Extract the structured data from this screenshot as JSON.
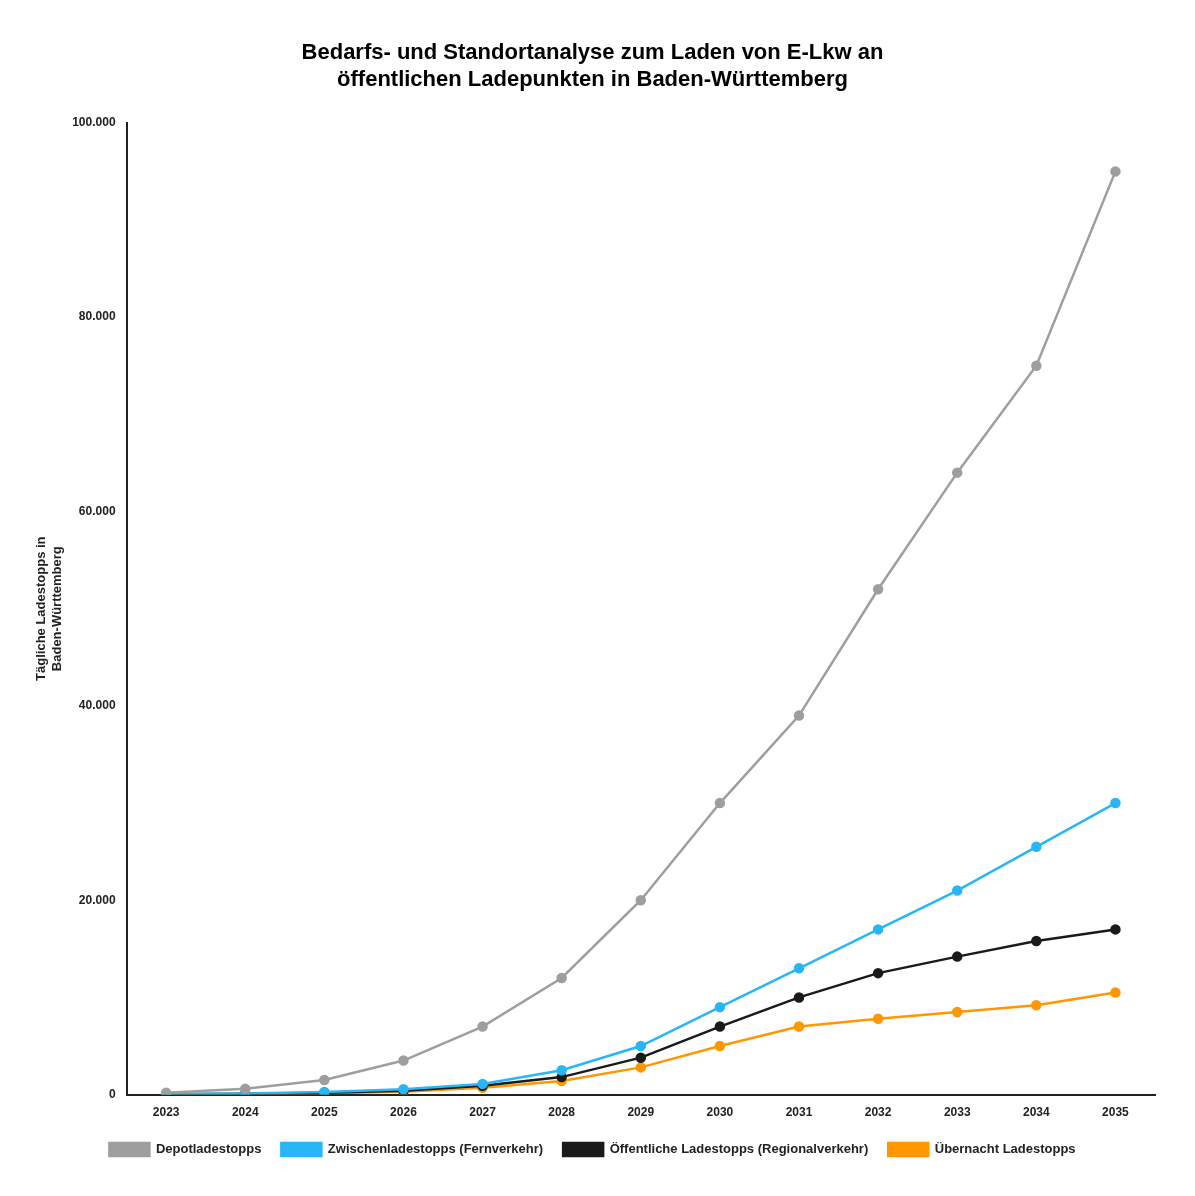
{
  "chart_data": {
    "type": "line",
    "title": [
      "Bedarfs- und Standortanalyse zum Laden von E-Lkw an",
      "öffentlichen Ladepunkten in Baden-Württemberg"
    ],
    "ylabel": [
      "Tägliche Ladestopps in",
      "Baden-Württemberg"
    ],
    "x": [
      2023,
      2024,
      2025,
      2026,
      2027,
      2028,
      2029,
      2030,
      2031,
      2032,
      2033,
      2034,
      2035
    ],
    "series": [
      {
        "name": "Depotladestopps",
        "color": "#9E9E9E",
        "values": [
          200,
          600,
          1500,
          3500,
          7000,
          12000,
          20000,
          30000,
          39000,
          52000,
          64000,
          75000,
          95000
        ]
      },
      {
        "name": "Zwischenladestopps (Fernverkehr)",
        "color": "#29B6F6",
        "values": [
          50,
          120,
          280,
          550,
          1100,
          2500,
          5000,
          9000,
          13000,
          17000,
          21000,
          25500,
          30000
        ]
      },
      {
        "name": "Öffentliche Ladestopps (Regionalverkehr)",
        "color": "#1A1A1A",
        "values": [
          30,
          80,
          200,
          400,
          900,
          1800,
          3800,
          7000,
          10000,
          12500,
          14200,
          15800,
          17000
        ]
      },
      {
        "name": "Übernacht Ladestopps",
        "color": "#FF9800",
        "values": [
          20,
          60,
          150,
          300,
          700,
          1400,
          2800,
          5000,
          7000,
          7800,
          8500,
          9200,
          10500
        ]
      }
    ],
    "xlim": [
      2022.5,
      2035.5
    ],
    "xticks": [
      2023,
      2024,
      2025,
      2026,
      2027,
      2028,
      2029,
      2030,
      2031,
      2032,
      2033,
      2034,
      2035
    ],
    "ylim": [
      0,
      100000
    ],
    "yticks": [
      0,
      {
        "value": 20000,
        "label": "20.000"
      },
      {
        "value": 40000,
        "label": "40.000"
      },
      {
        "value": 60000,
        "label": "60.000"
      },
      {
        "value": 80000,
        "label": "80.000"
      },
      {
        "value": 100000,
        "label": "100.000"
      }
    ],
    "grid": false,
    "legend": "bottom",
    "marker": "circle",
    "line_style": "solid"
  }
}
